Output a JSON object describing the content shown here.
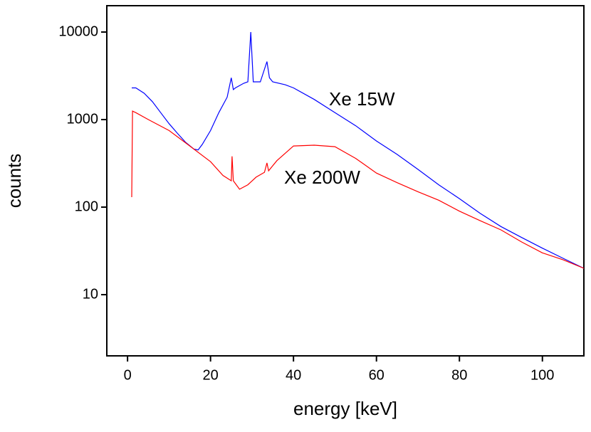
{
  "chart_data": {
    "type": "line",
    "xlabel": "energy [keV]",
    "ylabel": "counts",
    "xlim": [
      -5,
      110
    ],
    "xticks": [
      0,
      20,
      40,
      60,
      80,
      100
    ],
    "ylim": [
      2,
      20000
    ],
    "yticks": [
      10,
      100,
      1000,
      10000
    ],
    "ylog": true,
    "annotations": [
      "Xe 15W",
      "Xe 200W"
    ],
    "series": [
      {
        "name": "Xe 15W",
        "color": "#0000ff",
        "x": [
          1,
          2,
          4,
          6,
          8,
          10,
          12,
          14,
          16,
          17,
          18,
          20,
          22,
          24,
          25,
          25.5,
          26,
          28,
          29,
          29.7,
          30.3,
          32,
          33.6,
          34.2,
          35,
          38,
          40,
          45,
          50,
          55,
          60,
          65,
          70,
          75,
          80,
          85,
          90,
          95,
          100,
          105,
          110
        ],
        "values": [
          2300,
          2300,
          2000,
          1600,
          1200,
          900,
          700,
          550,
          460,
          450,
          520,
          750,
          1200,
          1800,
          3000,
          2200,
          2300,
          2600,
          2700,
          10000,
          2700,
          2700,
          4600,
          3000,
          2700,
          2500,
          2300,
          1700,
          1200,
          850,
          570,
          400,
          270,
          180,
          125,
          85,
          60,
          45,
          34,
          26,
          20
        ]
      },
      {
        "name": "Xe 200W",
        "color": "#ff0000",
        "x": [
          1,
          1.2,
          2,
          5,
          10,
          15,
          20,
          23,
          25,
          25.2,
          25.5,
          27,
          29,
          31,
          33,
          33.6,
          34,
          36,
          40,
          45,
          50,
          55,
          60,
          65,
          70,
          75,
          80,
          85,
          90,
          95,
          100,
          105,
          110
        ],
        "values": [
          130,
          1250,
          1200,
          1000,
          750,
          500,
          330,
          230,
          200,
          380,
          200,
          160,
          180,
          220,
          250,
          320,
          260,
          340,
          500,
          510,
          490,
          360,
          245,
          190,
          150,
          120,
          90,
          70,
          55,
          40,
          30,
          25,
          20
        ]
      }
    ]
  }
}
